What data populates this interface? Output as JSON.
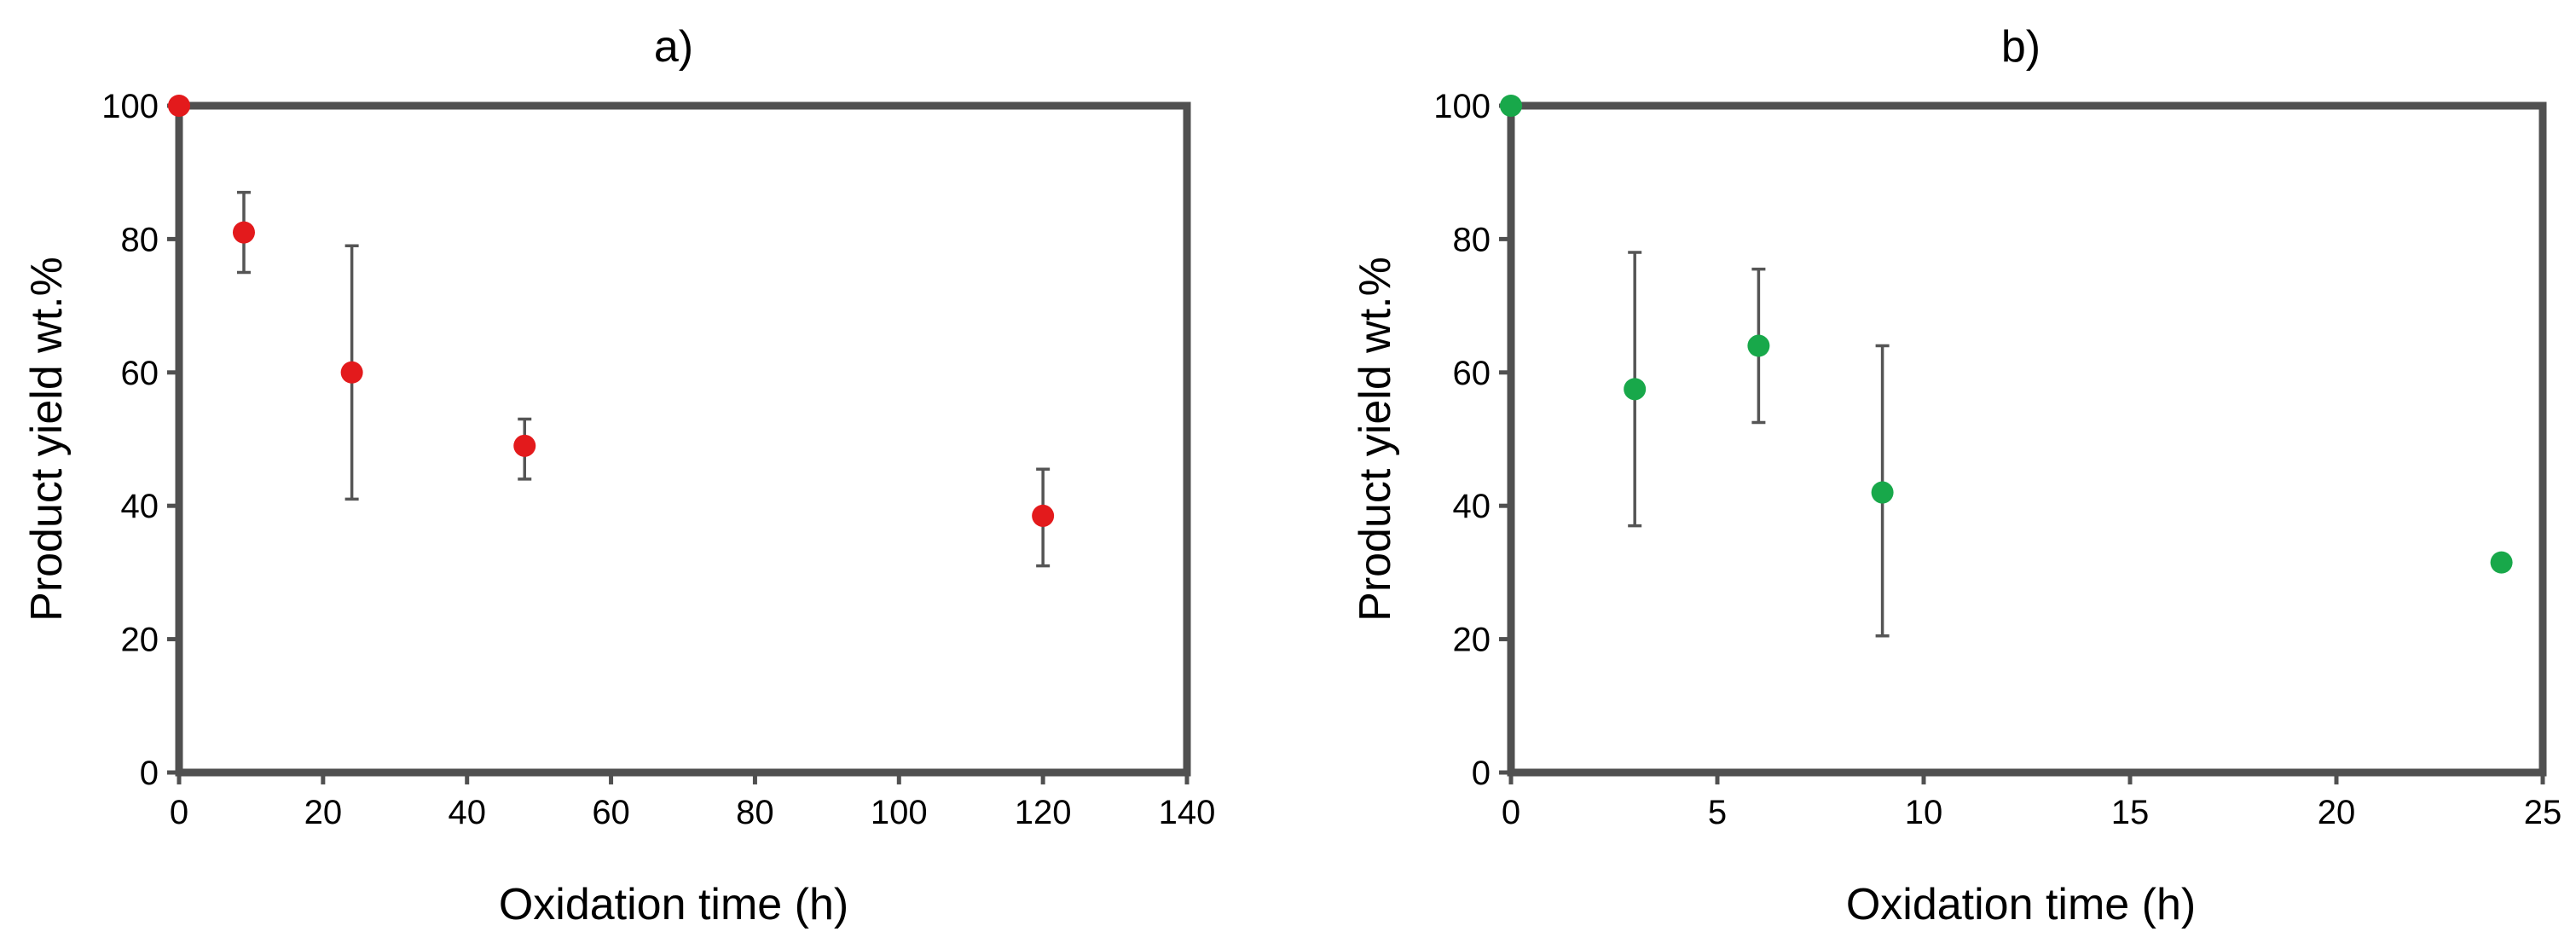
{
  "chart_data": [
    {
      "type": "scatter",
      "title": "a)",
      "xlabel": "Oxidation time (h)",
      "ylabel": "Product yield wt.%",
      "xlim": [
        0,
        140
      ],
      "ylim": [
        0,
        100
      ],
      "xticks": [
        0,
        20,
        40,
        60,
        80,
        100,
        120,
        140
      ],
      "yticks": [
        0,
        20,
        40,
        60,
        80,
        100
      ],
      "grid": false,
      "series": [
        {
          "color": "#e31a1c",
          "points": [
            {
              "x": 0,
              "y": 100
            },
            {
              "x": 9,
              "y": 81,
              "err_low": 75,
              "err_high": 87
            },
            {
              "x": 24,
              "y": 60,
              "err_low": 41,
              "err_high": 79
            },
            {
              "x": 48,
              "y": 49,
              "err_low": 44,
              "err_high": 53
            },
            {
              "x": 120,
              "y": 38.5,
              "err_low": 31,
              "err_high": 45.5
            }
          ]
        }
      ]
    },
    {
      "type": "scatter",
      "title": "b)",
      "xlabel": "Oxidation time (h)",
      "ylabel": "Product yield wt.%",
      "xlim": [
        0,
        25
      ],
      "ylim": [
        0,
        100
      ],
      "xticks": [
        0,
        5,
        10,
        15,
        20,
        25
      ],
      "yticks": [
        0,
        20,
        40,
        60,
        80,
        100
      ],
      "grid": false,
      "series": [
        {
          "color": "#18a84a",
          "points": [
            {
              "x": 0,
              "y": 100
            },
            {
              "x": 3,
              "y": 57.5,
              "err_low": 37,
              "err_high": 78
            },
            {
              "x": 6,
              "y": 64,
              "err_low": 52.5,
              "err_high": 75.5
            },
            {
              "x": 9,
              "y": 42,
              "err_low": 20.5,
              "err_high": 64
            },
            {
              "x": 24,
              "y": 31.5
            }
          ]
        }
      ]
    }
  ]
}
